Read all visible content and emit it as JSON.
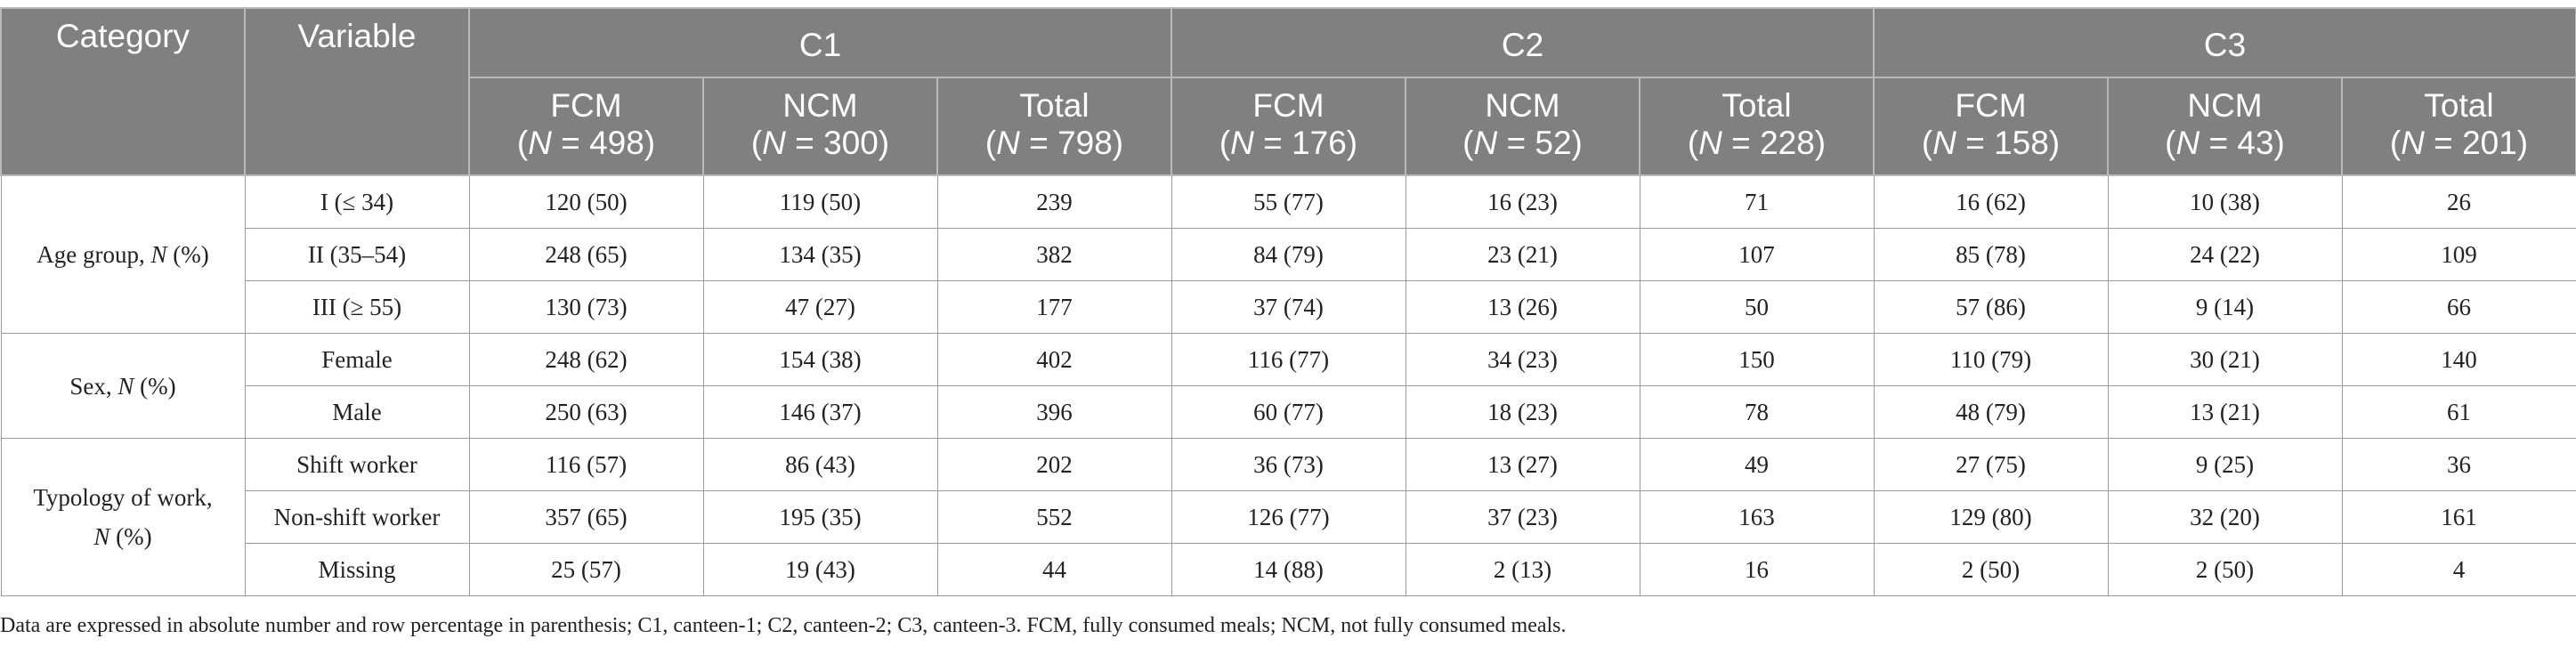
{
  "table": {
    "header": {
      "category": "Category",
      "variable": "Variable",
      "groups": [
        "C1",
        "C2",
        "C3"
      ],
      "subcolumns": [
        {
          "name": "FCM",
          "n_prefix": "(",
          "n_var": "N",
          "n_suffix": " = 498)"
        },
        {
          "name": "NCM",
          "n_prefix": "(",
          "n_var": "N",
          "n_suffix": " = 300)"
        },
        {
          "name": "Total",
          "n_prefix": "(",
          "n_var": "N",
          "n_suffix": " = 798)"
        },
        {
          "name": "FCM",
          "n_prefix": "(",
          "n_var": "N",
          "n_suffix": " = 176)"
        },
        {
          "name": "NCM",
          "n_prefix": "(",
          "n_var": "N",
          "n_suffix": " = 52)"
        },
        {
          "name": "Total",
          "n_prefix": "(",
          "n_var": "N",
          "n_suffix": " = 228)"
        },
        {
          "name": "FCM",
          "n_prefix": "(",
          "n_var": "N",
          "n_suffix": " = 158)"
        },
        {
          "name": "NCM",
          "n_prefix": "(",
          "n_var": "N",
          "n_suffix": " = 43)"
        },
        {
          "name": "Total",
          "n_prefix": "(",
          "n_var": "N",
          "n_suffix": " = 201)"
        }
      ]
    },
    "categories": [
      {
        "label_parts": [
          [
            "Age group, ",
            false
          ],
          [
            "N",
            true
          ],
          [
            " (%)",
            false
          ]
        ],
        "rows": [
          {
            "variable": "I (≤ 34)",
            "values": [
              "120 (50)",
              "119 (50)",
              "239",
              "55 (77)",
              "16 (23)",
              "71",
              "16 (62)",
              "10 (38)",
              "26"
            ]
          },
          {
            "variable": "II (35–54)",
            "values": [
              "248 (65)",
              "134 (35)",
              "382",
              "84 (79)",
              "23 (21)",
              "107",
              "85 (78)",
              "24 (22)",
              "109"
            ]
          },
          {
            "variable": "III (≥ 55)",
            "values": [
              "130 (73)",
              "47 (27)",
              "177",
              "37 (74)",
              "13 (26)",
              "50",
              "57 (86)",
              "9 (14)",
              "66"
            ]
          }
        ]
      },
      {
        "label_parts": [
          [
            "Sex, ",
            false
          ],
          [
            "N",
            true
          ],
          [
            " (%)",
            false
          ]
        ],
        "rows": [
          {
            "variable": "Female",
            "values": [
              "248 (62)",
              "154 (38)",
              "402",
              "116 (77)",
              "34 (23)",
              "150",
              "110 (79)",
              "30 (21)",
              "140"
            ]
          },
          {
            "variable": "Male",
            "values": [
              "250 (63)",
              "146 (37)",
              "396",
              "60 (77)",
              "18 (23)",
              "78",
              "48 (79)",
              "13 (21)",
              "61"
            ]
          }
        ]
      },
      {
        "label_parts": [
          [
            "Typology of work,",
            false
          ],
          [
            "\n",
            false
          ],
          [
            "N",
            true
          ],
          [
            " (%)",
            false
          ]
        ],
        "rows": [
          {
            "variable": "Shift worker",
            "values": [
              "116 (57)",
              "86 (43)",
              "202",
              "36 (73)",
              "13 (27)",
              "49",
              "27 (75)",
              "9 (25)",
              "36"
            ]
          },
          {
            "variable": "Non-shift worker",
            "values": [
              "357 (65)",
              "195 (35)",
              "552",
              "126 (77)",
              "37 (23)",
              "163",
              "129 (80)",
              "32 (20)",
              "161"
            ]
          },
          {
            "variable": "Missing",
            "values": [
              "25 (57)",
              "19 (43)",
              "44",
              "14 (88)",
              "2 (13)",
              "16",
              "2 (50)",
              "2 (50)",
              "4"
            ]
          }
        ]
      }
    ]
  },
  "footnote": "Data are expressed in absolute number and row percentage in parenthesis; C1, canteen-1; C2, canteen-2; C3, canteen-3. FCM, fully consumed meals; NCM, not fully consumed meals.",
  "colors": {
    "header_bg": "#808080",
    "header_text": "#ffffff",
    "border": "#9a9a9a"
  }
}
